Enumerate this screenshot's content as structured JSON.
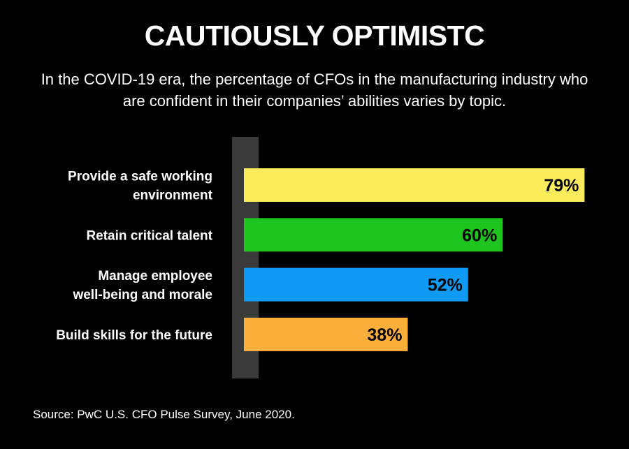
{
  "chart_data": {
    "type": "bar",
    "orientation": "horizontal",
    "title": "CAUTIOUSLY OPTIMISTC",
    "subtitle": "In the COVID-19 era, the percentage of CFOs in the manufacturing industry who are confident in their companies’ abilities varies by topic.",
    "categories": [
      [
        "Provide a safe working",
        "environment"
      ],
      [
        "Retain critical talent"
      ],
      [
        "Manage employee",
        "well-being and morale"
      ],
      [
        "Build skills for the future"
      ]
    ],
    "values": [
      79,
      60,
      52,
      38
    ],
    "value_labels": [
      "79%",
      "60%",
      "52%",
      "38%"
    ],
    "bar_colors": [
      "#FCEB5B",
      "#1EC51E",
      "#0F9BF5",
      "#FCAE3A"
    ],
    "axis_color": "#3A3A3A",
    "xlim": [
      0,
      100
    ],
    "source": "Source: PwC U.S. CFO Pulse Survey, June 2020."
  }
}
